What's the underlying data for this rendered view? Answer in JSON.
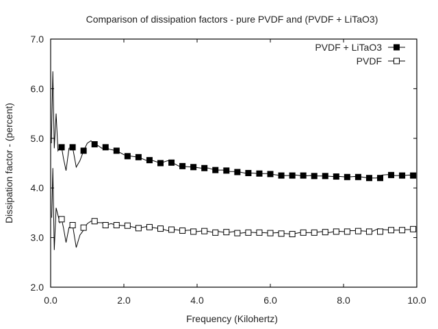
{
  "chart_data": {
    "type": "line",
    "title": "Comparison of dissipation factors - pure PVDF and (PVDF + LiTaO3)",
    "xlabel": "Frequency (Kilohertz)",
    "ylabel": "Dissipation factor  - (percent)",
    "xlim": [
      0,
      10
    ],
    "ylim": [
      2,
      7
    ],
    "xticks": [
      0,
      2,
      4,
      6,
      8,
      10
    ],
    "xtick_labels": [
      "0.0",
      "2.0",
      "4.0",
      "6.0",
      "8.0",
      "10.0"
    ],
    "yticks": [
      2,
      3,
      4,
      5,
      6,
      7
    ],
    "ytick_labels": [
      "2.0",
      "3.0",
      "4.0",
      "5.0",
      "6.0",
      "7.0"
    ],
    "grid": false,
    "legend_position": "top-right",
    "series": [
      {
        "name": "PVDF + LiTaO3",
        "marker": "filled-square",
        "color": "#000000",
        "line": [
          [
            0.02,
            4.9
          ],
          [
            0.06,
            6.35
          ],
          [
            0.1,
            4.8
          ],
          [
            0.15,
            5.5
          ],
          [
            0.2,
            4.75
          ],
          [
            0.27,
            4.85
          ],
          [
            0.3,
            4.82
          ],
          [
            0.35,
            4.6
          ],
          [
            0.42,
            4.35
          ],
          [
            0.5,
            4.8
          ],
          [
            0.6,
            4.82
          ],
          [
            0.7,
            4.42
          ],
          [
            0.8,
            4.55
          ],
          [
            0.9,
            4.75
          ],
          [
            1.0,
            4.9
          ],
          [
            1.1,
            4.95
          ],
          [
            1.2,
            4.88
          ],
          [
            1.3,
            4.85
          ],
          [
            1.4,
            4.8
          ],
          [
            1.5,
            4.82
          ],
          [
            1.6,
            4.78
          ],
          [
            1.8,
            4.75
          ],
          [
            2.0,
            4.67
          ],
          [
            2.2,
            4.64
          ],
          [
            2.4,
            4.62
          ],
          [
            2.6,
            4.56
          ],
          [
            2.8,
            4.55
          ],
          [
            3.0,
            4.5
          ],
          [
            3.2,
            4.55
          ],
          [
            3.35,
            4.5
          ],
          [
            3.5,
            4.44
          ],
          [
            3.7,
            4.43
          ],
          [
            3.9,
            4.42
          ],
          [
            4.1,
            4.4
          ],
          [
            4.3,
            4.4
          ],
          [
            4.5,
            4.36
          ],
          [
            4.7,
            4.36
          ],
          [
            4.9,
            4.33
          ],
          [
            5.1,
            4.33
          ],
          [
            5.3,
            4.3
          ],
          [
            5.5,
            4.3
          ],
          [
            5.7,
            4.29
          ],
          [
            5.9,
            4.29
          ],
          [
            6.1,
            4.27
          ],
          [
            6.3,
            4.25
          ],
          [
            6.5,
            4.25
          ],
          [
            6.7,
            4.26
          ],
          [
            6.9,
            4.24
          ],
          [
            7.1,
            4.25
          ],
          [
            7.3,
            4.24
          ],
          [
            7.5,
            4.24
          ],
          [
            7.7,
            4.23
          ],
          [
            7.9,
            4.23
          ],
          [
            8.1,
            4.22
          ],
          [
            8.3,
            4.23
          ],
          [
            8.5,
            4.22
          ],
          [
            8.7,
            4.2
          ],
          [
            8.9,
            4.2
          ],
          [
            9.05,
            4.26
          ],
          [
            9.2,
            4.27
          ],
          [
            9.4,
            4.25
          ],
          [
            9.6,
            4.25
          ],
          [
            9.8,
            4.26
          ],
          [
            9.95,
            4.24
          ]
        ],
        "markers": [
          [
            0.3,
            4.82
          ],
          [
            0.6,
            4.82
          ],
          [
            0.9,
            4.75
          ],
          [
            1.2,
            4.88
          ],
          [
            1.5,
            4.82
          ],
          [
            1.8,
            4.75
          ],
          [
            2.1,
            4.64
          ],
          [
            2.4,
            4.62
          ],
          [
            2.7,
            4.56
          ],
          [
            3.0,
            4.5
          ],
          [
            3.3,
            4.51
          ],
          [
            3.6,
            4.44
          ],
          [
            3.9,
            4.42
          ],
          [
            4.2,
            4.4
          ],
          [
            4.5,
            4.36
          ],
          [
            4.8,
            4.35
          ],
          [
            5.1,
            4.32
          ],
          [
            5.4,
            4.3
          ],
          [
            5.7,
            4.29
          ],
          [
            6.0,
            4.28
          ],
          [
            6.3,
            4.25
          ],
          [
            6.6,
            4.25
          ],
          [
            6.9,
            4.25
          ],
          [
            7.2,
            4.24
          ],
          [
            7.5,
            4.24
          ],
          [
            7.8,
            4.23
          ],
          [
            8.1,
            4.22
          ],
          [
            8.4,
            4.22
          ],
          [
            8.7,
            4.2
          ],
          [
            9.0,
            4.2
          ],
          [
            9.3,
            4.26
          ],
          [
            9.6,
            4.25
          ],
          [
            9.9,
            4.25
          ]
        ]
      },
      {
        "name": "PVDF",
        "marker": "open-square",
        "color": "#000000",
        "line": [
          [
            0.03,
            3.4
          ],
          [
            0.06,
            4.4
          ],
          [
            0.1,
            2.75
          ],
          [
            0.15,
            3.6
          ],
          [
            0.2,
            3.45
          ],
          [
            0.25,
            3.3
          ],
          [
            0.3,
            3.37
          ],
          [
            0.35,
            3.2
          ],
          [
            0.42,
            2.9
          ],
          [
            0.5,
            3.2
          ],
          [
            0.6,
            3.25
          ],
          [
            0.7,
            2.8
          ],
          [
            0.8,
            3.05
          ],
          [
            0.9,
            3.15
          ],
          [
            1.0,
            3.28
          ],
          [
            1.1,
            3.33
          ],
          [
            1.2,
            3.33
          ],
          [
            1.3,
            3.3
          ],
          [
            1.4,
            3.3
          ],
          [
            1.5,
            3.25
          ],
          [
            1.65,
            3.28
          ],
          [
            1.8,
            3.25
          ],
          [
            2.0,
            3.24
          ],
          [
            2.2,
            3.22
          ],
          [
            2.4,
            3.19
          ],
          [
            2.6,
            3.22
          ],
          [
            2.8,
            3.2
          ],
          [
            3.0,
            3.18
          ],
          [
            3.2,
            3.14
          ],
          [
            3.4,
            3.16
          ],
          [
            3.6,
            3.14
          ],
          [
            3.8,
            3.15
          ],
          [
            4.0,
            3.12
          ],
          [
            4.2,
            3.14
          ],
          [
            4.4,
            3.11
          ],
          [
            4.6,
            3.12
          ],
          [
            4.8,
            3.1
          ],
          [
            5.0,
            3.12
          ],
          [
            5.2,
            3.09
          ],
          [
            5.4,
            3.11
          ],
          [
            5.6,
            3.1
          ],
          [
            5.8,
            3.1
          ],
          [
            6.0,
            3.09
          ],
          [
            6.2,
            3.1
          ],
          [
            6.4,
            3.08
          ],
          [
            6.6,
            3.07
          ],
          [
            6.8,
            3.1
          ],
          [
            7.0,
            3.1
          ],
          [
            7.2,
            3.1
          ],
          [
            7.4,
            3.12
          ],
          [
            7.6,
            3.1
          ],
          [
            7.8,
            3.13
          ],
          [
            8.0,
            3.12
          ],
          [
            8.2,
            3.14
          ],
          [
            8.4,
            3.14
          ],
          [
            8.6,
            3.13
          ],
          [
            8.8,
            3.13
          ],
          [
            8.95,
            3.18
          ],
          [
            9.1,
            3.16
          ],
          [
            9.3,
            3.15
          ],
          [
            9.5,
            3.15
          ],
          [
            9.7,
            3.16
          ],
          [
            9.95,
            3.16
          ]
        ],
        "markers": [
          [
            0.3,
            3.37
          ],
          [
            0.6,
            3.25
          ],
          [
            0.9,
            3.2
          ],
          [
            1.2,
            3.33
          ],
          [
            1.5,
            3.25
          ],
          [
            1.8,
            3.25
          ],
          [
            2.1,
            3.24
          ],
          [
            2.4,
            3.19
          ],
          [
            2.7,
            3.21
          ],
          [
            3.0,
            3.18
          ],
          [
            3.3,
            3.16
          ],
          [
            3.6,
            3.14
          ],
          [
            3.9,
            3.12
          ],
          [
            4.2,
            3.13
          ],
          [
            4.5,
            3.1
          ],
          [
            4.8,
            3.11
          ],
          [
            5.1,
            3.09
          ],
          [
            5.4,
            3.1
          ],
          [
            5.7,
            3.1
          ],
          [
            6.0,
            3.09
          ],
          [
            6.3,
            3.08
          ],
          [
            6.6,
            3.07
          ],
          [
            6.9,
            3.1
          ],
          [
            7.2,
            3.1
          ],
          [
            7.5,
            3.11
          ],
          [
            7.8,
            3.12
          ],
          [
            8.1,
            3.12
          ],
          [
            8.4,
            3.13
          ],
          [
            8.7,
            3.12
          ],
          [
            9.0,
            3.12
          ],
          [
            9.3,
            3.15
          ],
          [
            9.6,
            3.15
          ],
          [
            9.9,
            3.17
          ]
        ]
      }
    ]
  }
}
